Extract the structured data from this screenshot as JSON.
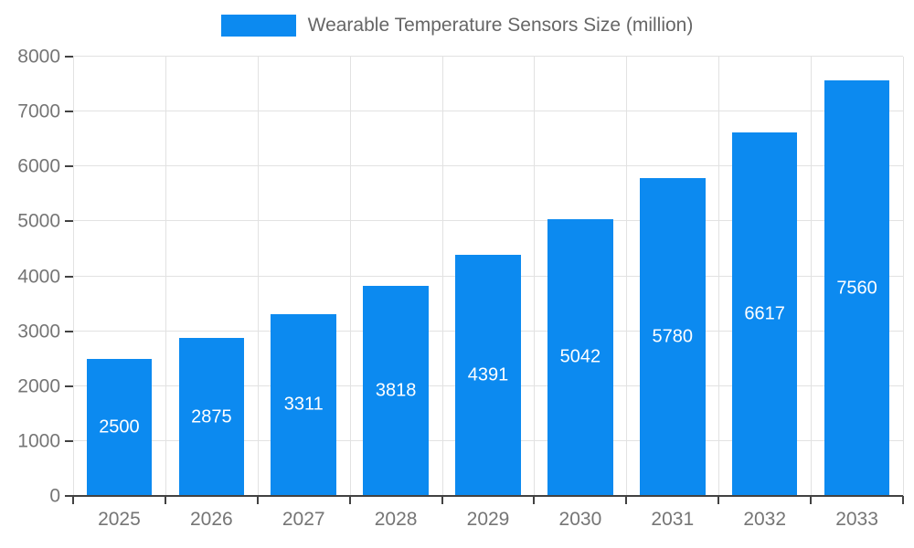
{
  "chart_data": {
    "type": "bar",
    "title": "Wearable Temperature Sensors Size (million)",
    "categories": [
      "2025",
      "2026",
      "2027",
      "2028",
      "2029",
      "2030",
      "2031",
      "2032",
      "2033"
    ],
    "values": [
      2500,
      2875,
      3311,
      3818,
      4391,
      5042,
      5780,
      6617,
      7560
    ],
    "xlabel": "",
    "ylabel": "",
    "ylim": [
      0,
      8000
    ],
    "yticks": [
      0,
      1000,
      2000,
      3000,
      4000,
      5000,
      6000,
      7000,
      8000
    ],
    "grid": true,
    "legend_position": "top-center",
    "bar_color": "#0c8af0",
    "bar_label_color": "#ffffff",
    "axis_tick_label_color": "#757575",
    "title_color": "#666666",
    "gridline_color": "#e2e2e2",
    "axis_line_color": "#424242"
  }
}
